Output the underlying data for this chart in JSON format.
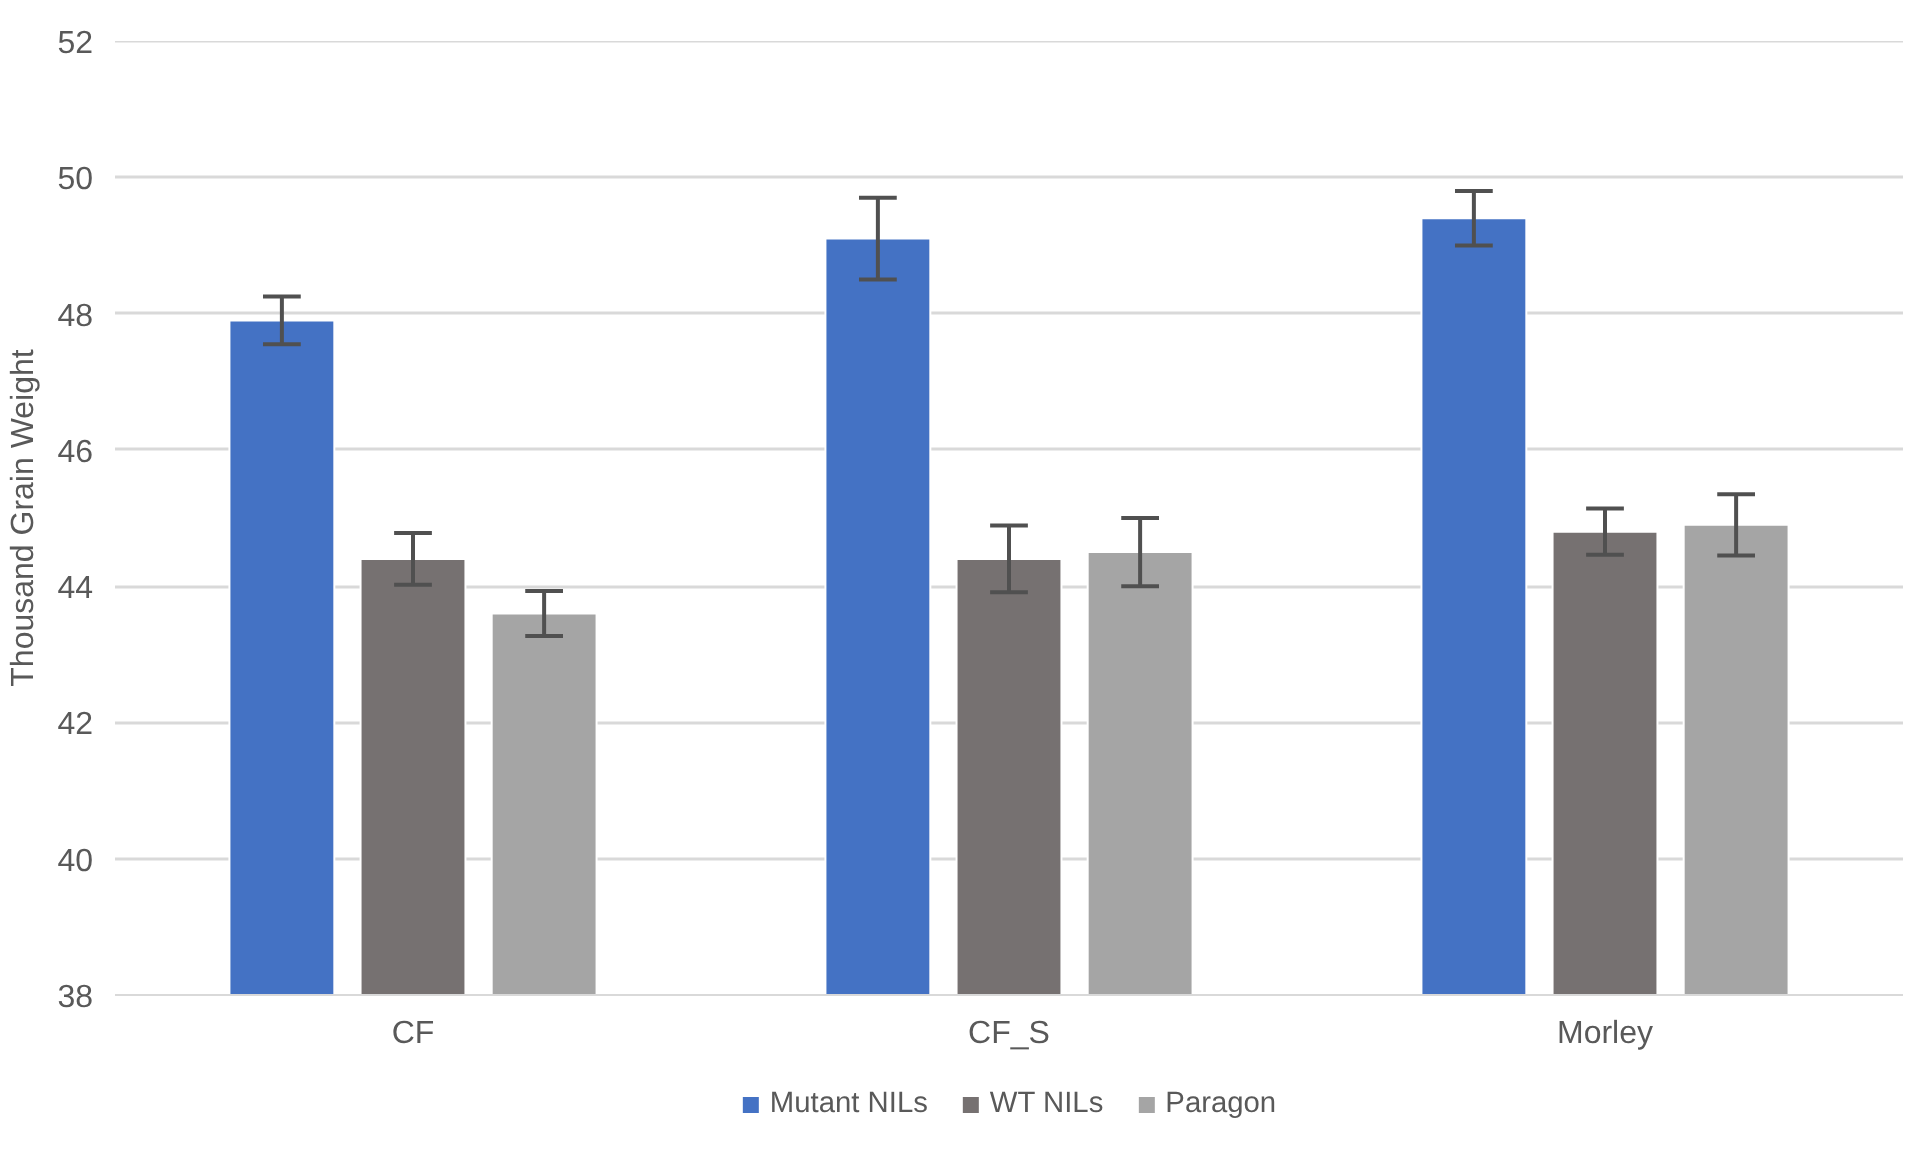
{
  "chart_data": {
    "type": "bar",
    "ylabel": "Thousand Grain Weight",
    "categories": [
      "CF",
      "CF_S",
      "Morley"
    ],
    "series": [
      {
        "name": "Mutant NILs",
        "color": "#4472c4",
        "values": [
          47.9,
          49.1,
          49.4
        ],
        "errors": [
          0.35,
          0.6,
          0.4
        ]
      },
      {
        "name": "WT NILs",
        "color": "#767171",
        "values": [
          44.4,
          44.4,
          44.8
        ],
        "errors": [
          0.38,
          0.49,
          0.34
        ]
      },
      {
        "name": "Paragon",
        "color": "#a5a5a5",
        "values": [
          43.6,
          44.5,
          44.9
        ],
        "errors": [
          0.33,
          0.5,
          0.45
        ]
      }
    ],
    "ylim": [
      38,
      52
    ],
    "yticks": [
      38,
      40,
      42,
      44,
      46,
      48,
      50,
      52
    ],
    "grid": "y",
    "legend": "bottom"
  }
}
